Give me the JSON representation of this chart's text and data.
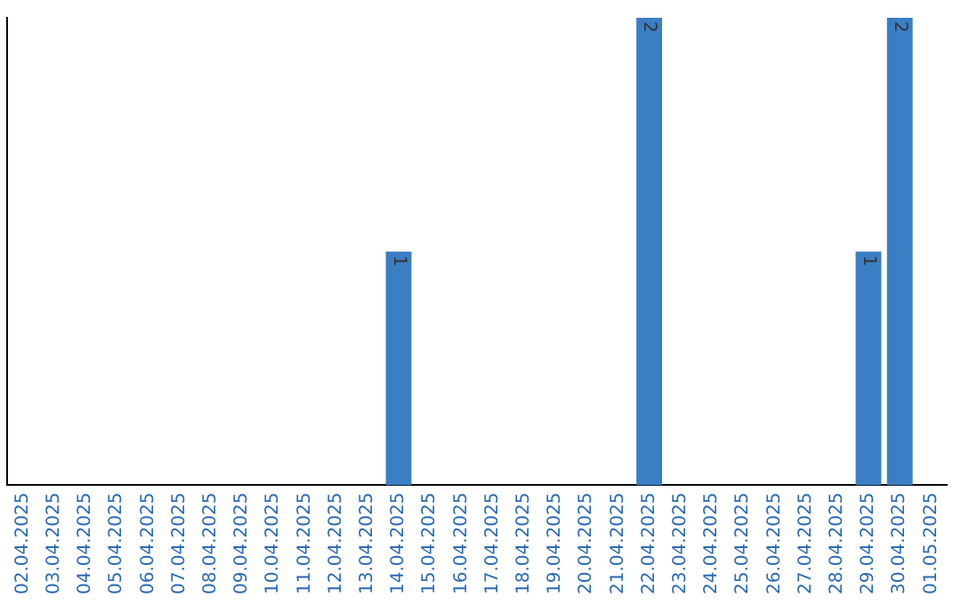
{
  "chart_data": {
    "type": "bar",
    "categories": [
      "02.04.2025",
      "03.04.2025",
      "04.04.2025",
      "05.04.2025",
      "06.04.2025",
      "07.04.2025",
      "08.04.2025",
      "09.04.2025",
      "10.04.2025",
      "11.04.2025",
      "12.04.2025",
      "13.04.2025",
      "14.04.2025",
      "15.04.2025",
      "16.04.2025",
      "17.04.2025",
      "18.04.2025",
      "19.04.2025",
      "20.04.2025",
      "21.04.2025",
      "22.04.2025",
      "23.04.2025",
      "24.04.2025",
      "25.04.2025",
      "26.04.2025",
      "27.04.2025",
      "28.04.2025",
      "29.04.2025",
      "30.04.2025",
      "01.05.2025"
    ],
    "values": [
      null,
      null,
      null,
      null,
      null,
      null,
      null,
      null,
      null,
      null,
      null,
      null,
      1,
      null,
      null,
      null,
      null,
      null,
      null,
      null,
      2,
      null,
      null,
      null,
      null,
      null,
      null,
      1,
      2,
      null
    ],
    "data_labels": true,
    "color": "#3a7ec4",
    "ylim": [
      0,
      2
    ],
    "tick_labels": "x",
    "grid": false,
    "legend": false
  }
}
